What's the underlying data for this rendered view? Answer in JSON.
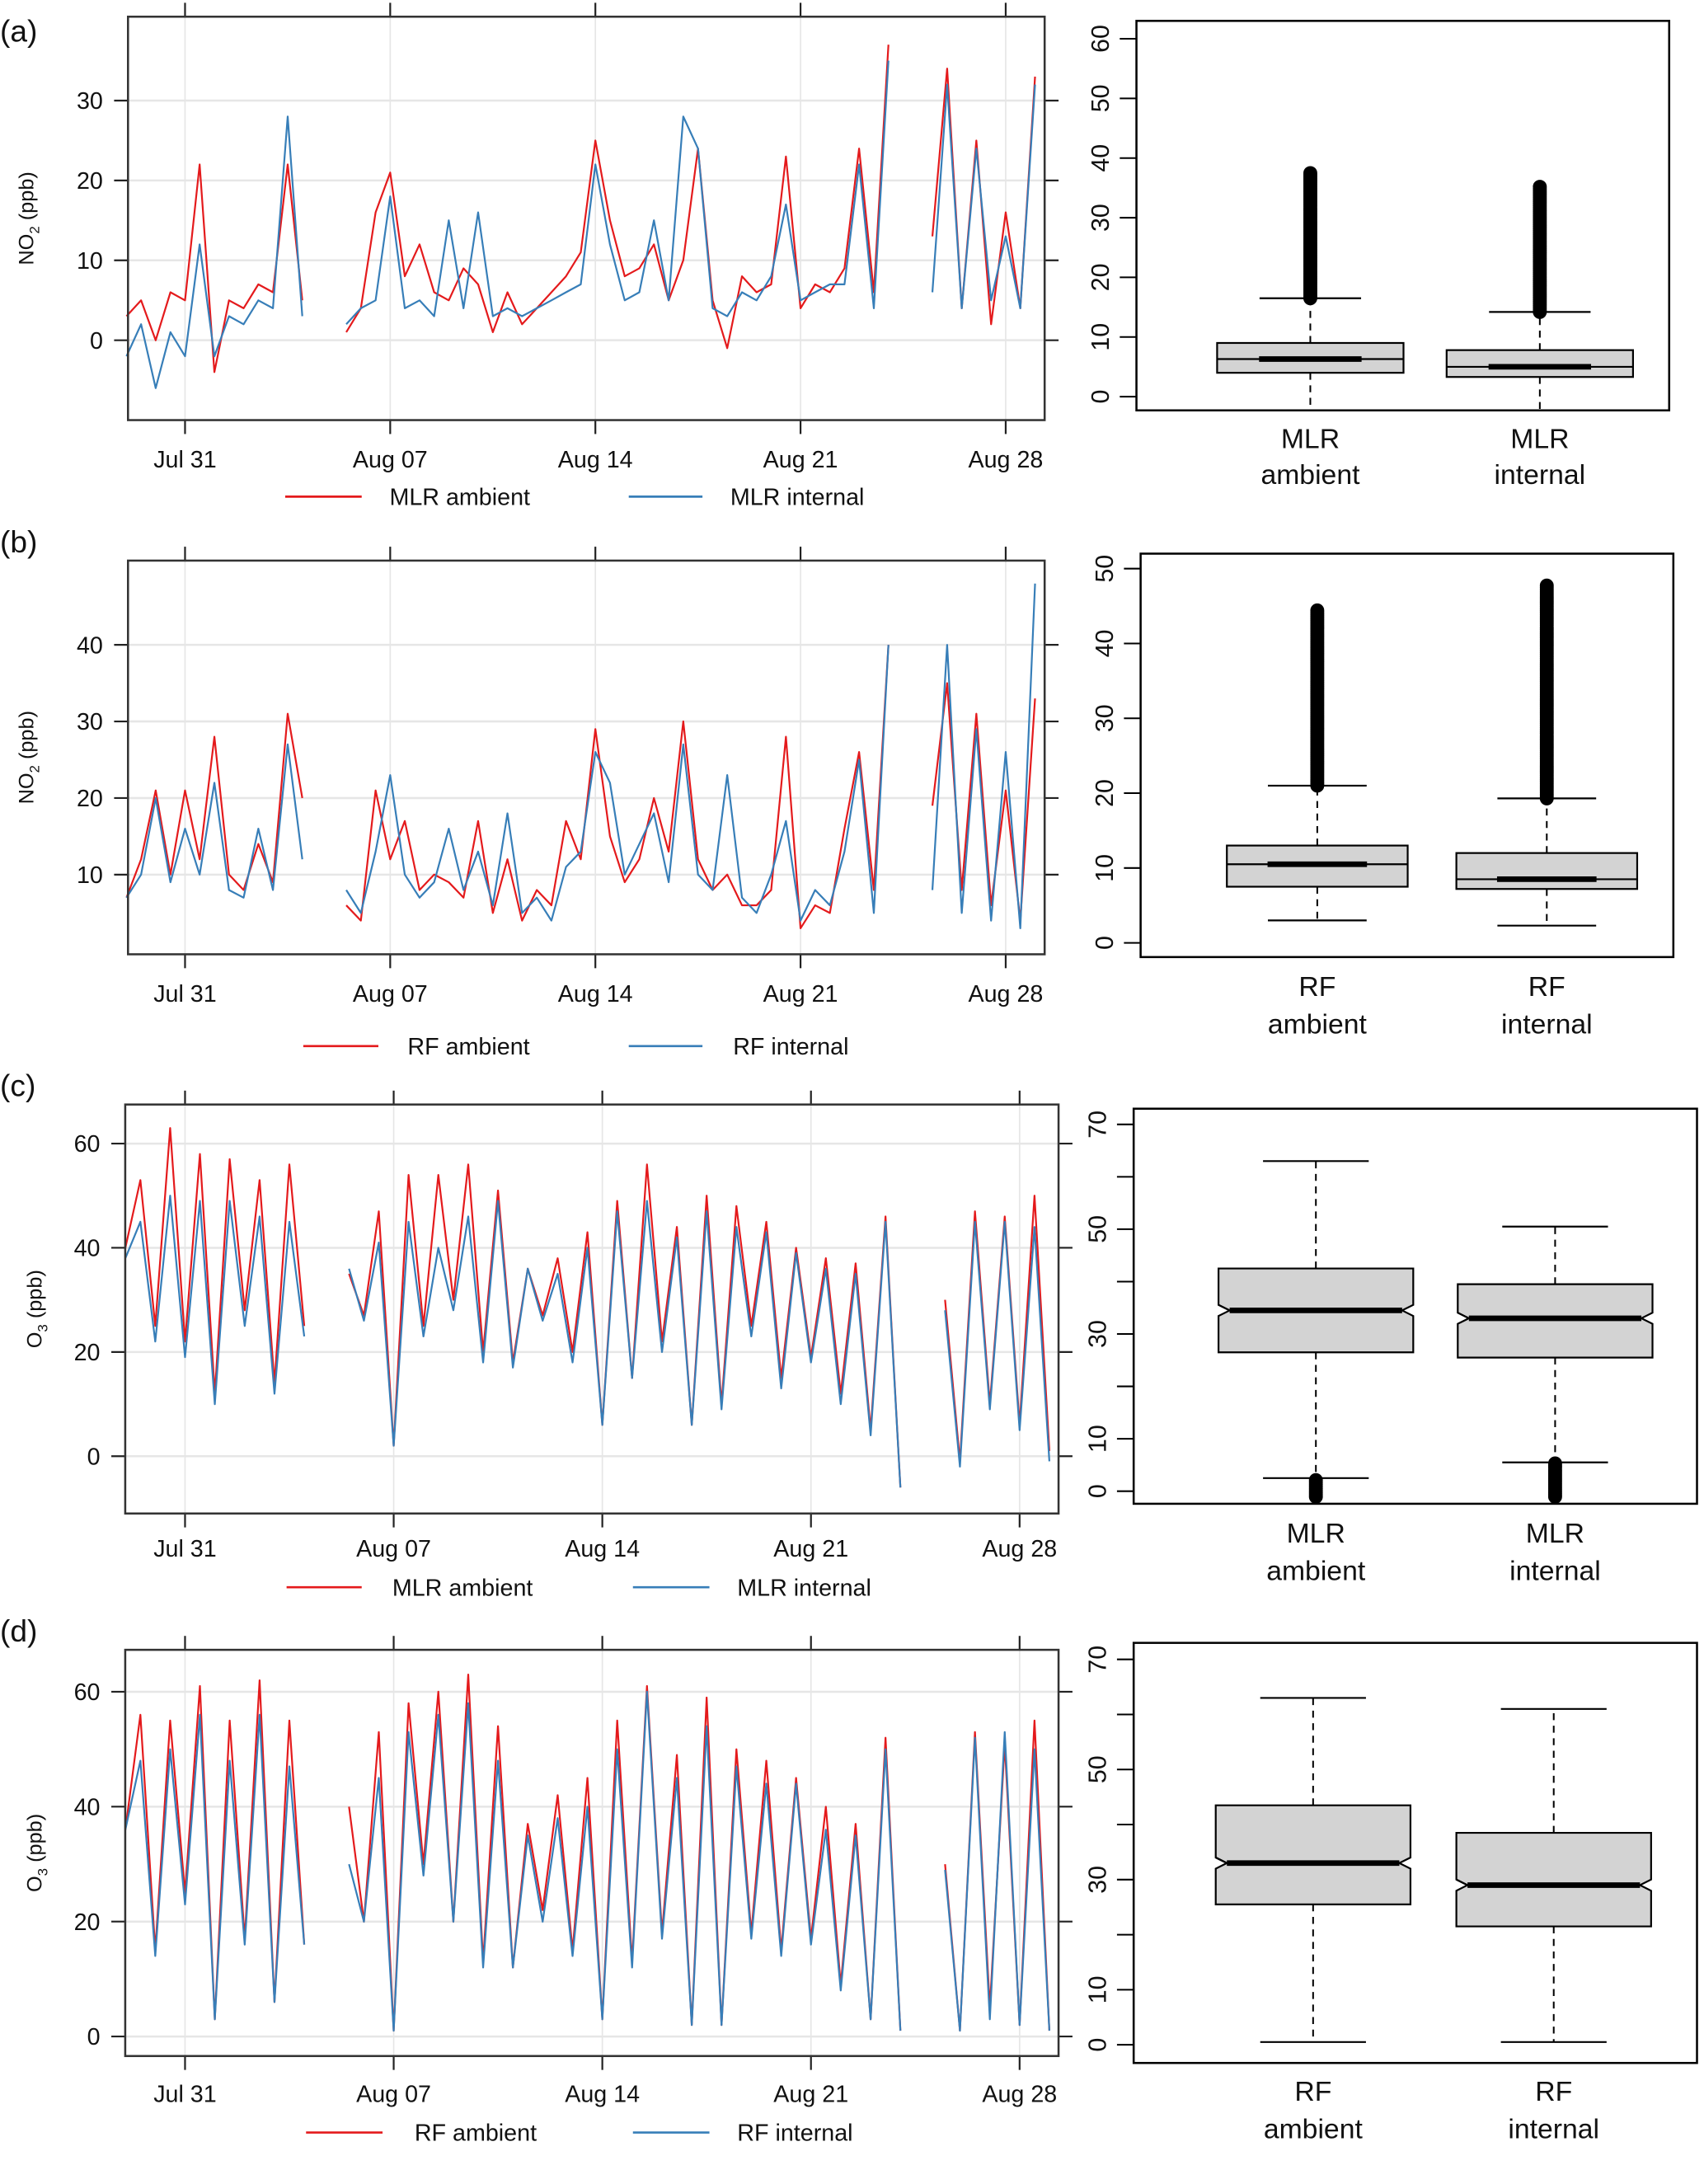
{
  "colors": {
    "ambient": "#e41a1c",
    "internal": "#377eb8",
    "box_fill": "#d3d3d3",
    "grid": "#e6e6e6"
  },
  "panel_labels": [
    "(a)",
    "(b)",
    "(c)",
    "(d)"
  ],
  "chart_data": [
    {
      "panel": "(a)",
      "type": "line",
      "ylabel": "NO2 (ppb)",
      "ylabel_main": "NO",
      "ylabel_sub": "2",
      "ylabel_unit": " (ppb)",
      "yticks": [
        0,
        10,
        20,
        30
      ],
      "ylim": [
        -10,
        40.5
      ],
      "xticks": [
        "Jul 31",
        "Aug 07",
        "Aug 14",
        "Aug 21",
        "Aug 28"
      ],
      "xlim": [
        "Jul 29 00:00",
        "Aug 29 08:00"
      ],
      "grid": true,
      "legend": "bottom",
      "x_start": "Jul 29 00:00",
      "x_step_hours": 12,
      "series": [
        {
          "name": "MLR ambient",
          "color": "#e41a1c",
          "values": [
            3,
            5,
            0,
            6,
            5,
            22,
            -4,
            5,
            4,
            7,
            6,
            22,
            5,
            null,
            null,
            1,
            4,
            16,
            21,
            8,
            12,
            6,
            5,
            9,
            7,
            1,
            6,
            2,
            4,
            6,
            8,
            11,
            25,
            15,
            8,
            9,
            12,
            5,
            10,
            24,
            5,
            -1,
            8,
            6,
            7,
            23,
            4,
            7,
            6,
            9,
            24,
            6,
            37,
            null,
            null,
            13,
            34,
            4,
            25,
            2,
            16,
            4,
            33
          ]
        },
        {
          "name": "MLR internal",
          "color": "#377eb8",
          "values": [
            -2,
            2,
            -6,
            1,
            -2,
            12,
            -2,
            3,
            2,
            5,
            4,
            28,
            3,
            null,
            null,
            2,
            4,
            5,
            18,
            4,
            5,
            3,
            15,
            4,
            16,
            3,
            4,
            3,
            4,
            5,
            6,
            7,
            22,
            12,
            5,
            6,
            15,
            5,
            28,
            24,
            4,
            3,
            6,
            5,
            8,
            17,
            5,
            6,
            7,
            7,
            22,
            4,
            35,
            null,
            null,
            6,
            32,
            4,
            24,
            5,
            13,
            4,
            32
          ]
        }
      ]
    },
    {
      "panel": "(a)",
      "type": "box",
      "categories": [
        [
          "MLR",
          "ambient"
        ],
        [
          "MLR",
          "internal"
        ]
      ],
      "yticks": [
        0,
        10,
        20,
        30,
        40,
        50,
        60
      ],
      "ytick_labels": [
        "0",
        "10",
        "20",
        "30",
        "40",
        "50",
        "60"
      ],
      "ylim": [
        -2.3,
        63
      ],
      "notched": false,
      "boxes": [
        {
          "lower_whisker": -2.3,
          "q1": 4,
          "median": 6.3,
          "q3": 9,
          "upper_whisker": 16.5,
          "outliers_range": [
            16.5,
            37.5
          ]
        },
        {
          "lower_whisker": -2.3,
          "q1": 3.3,
          "median": 5,
          "q3": 7.8,
          "upper_whisker": 14.2,
          "outliers_range": [
            14.2,
            35.5
          ]
        }
      ]
    },
    {
      "panel": "(b)",
      "type": "line",
      "ylabel": "NO2 (ppb)",
      "ylabel_main": "NO",
      "ylabel_sub": "2",
      "ylabel_unit": " (ppb)",
      "yticks": [
        10,
        20,
        30,
        40
      ],
      "ylim": [
        -0.4,
        51
      ],
      "xticks": [
        "Jul 31",
        "Aug 07",
        "Aug 14",
        "Aug 21",
        "Aug 28"
      ],
      "xlim": [
        "Jul 29 00:00",
        "Aug 29 08:00"
      ],
      "grid": true,
      "legend": "bottom",
      "x_start": "Jul 29 00:00",
      "x_step_hours": 12,
      "series": [
        {
          "name": "RF ambient",
          "color": "#e41a1c",
          "values": [
            7,
            12,
            21,
            10,
            21,
            12,
            28,
            10,
            8,
            14,
            9,
            31,
            20,
            null,
            null,
            6,
            4,
            21,
            12,
            17,
            8,
            10,
            9,
            7,
            17,
            5,
            12,
            4,
            8,
            6,
            17,
            12,
            29,
            15,
            9,
            12,
            20,
            13,
            30,
            12,
            8,
            10,
            6,
            6,
            8,
            28,
            3,
            6,
            5,
            16,
            26,
            8,
            40,
            null,
            null,
            19,
            35,
            8,
            31,
            6,
            21,
            4,
            33
          ]
        },
        {
          "name": "RF internal",
          "color": "#377eb8",
          "values": [
            7,
            10,
            20,
            9,
            16,
            10,
            22,
            8,
            7,
            16,
            8,
            27,
            12,
            null,
            null,
            8,
            5,
            13,
            23,
            10,
            7,
            9,
            16,
            8,
            13,
            6,
            18,
            5,
            7,
            4,
            11,
            13,
            26,
            22,
            10,
            14,
            18,
            9,
            27,
            10,
            8,
            23,
            7,
            5,
            10,
            17,
            4,
            8,
            6,
            13,
            25,
            5,
            40,
            null,
            null,
            8,
            40,
            5,
            29,
            4,
            26,
            3,
            48
          ]
        }
      ]
    },
    {
      "panel": "(b)",
      "type": "box",
      "categories": [
        [
          "RF",
          "ambient"
        ],
        [
          "RF",
          "internal"
        ]
      ],
      "yticks": [
        0,
        10,
        20,
        30,
        40,
        50
      ],
      "ytick_labels": [
        "0",
        "10",
        "20",
        "30",
        "40",
        "50"
      ],
      "ylim": [
        -1.9,
        52
      ],
      "notched": false,
      "boxes": [
        {
          "lower_whisker": 3,
          "q1": 7.5,
          "median": 10.5,
          "q3": 13,
          "upper_whisker": 21,
          "outliers_range": [
            21,
            44.5
          ]
        },
        {
          "lower_whisker": 2.3,
          "q1": 7.2,
          "median": 8.5,
          "q3": 12,
          "upper_whisker": 19.3,
          "outliers_range": [
            19.3,
            48
          ]
        }
      ]
    },
    {
      "panel": "(c)",
      "type": "line",
      "ylabel": "O3 (ppb)",
      "ylabel_main": "O",
      "ylabel_sub": "3",
      "ylabel_unit": " (ppb)",
      "yticks": [
        0,
        20,
        40,
        60
      ],
      "ylim": [
        -11,
        67.5
      ],
      "xticks": [
        "Jul 31",
        "Aug 07",
        "Aug 14",
        "Aug 21",
        "Aug 28"
      ],
      "xlim": [
        "Jul 29 00:00",
        "Aug 29 08:00"
      ],
      "grid": true,
      "legend": "bottom",
      "x_start": "Jul 29 00:00",
      "x_step_hours": 12,
      "series": [
        {
          "name": "MLR ambient",
          "color": "#e41a1c",
          "values": [
            40,
            53,
            25,
            63,
            22,
            58,
            12,
            57,
            28,
            53,
            14,
            56,
            25,
            null,
            null,
            35,
            27,
            47,
            2,
            54,
            25,
            54,
            30,
            56,
            20,
            51,
            18,
            36,
            27,
            38,
            20,
            43,
            6,
            49,
            15,
            56,
            22,
            44,
            6,
            50,
            10,
            48,
            25,
            45,
            15,
            40,
            19,
            38,
            12,
            37,
            5,
            46,
            -6,
            null,
            null,
            30,
            -1,
            47,
            10,
            46,
            6,
            50,
            1
          ]
        },
        {
          "name": "MLR internal",
          "color": "#377eb8",
          "values": [
            38,
            45,
            22,
            50,
            19,
            49,
            10,
            49,
            25,
            46,
            12,
            45,
            23,
            null,
            null,
            36,
            26,
            41,
            2,
            45,
            23,
            40,
            28,
            46,
            18,
            49,
            17,
            36,
            26,
            35,
            18,
            40,
            6,
            47,
            15,
            49,
            20,
            42,
            6,
            47,
            9,
            44,
            23,
            43,
            13,
            39,
            18,
            36,
            10,
            35,
            4,
            45,
            -6,
            null,
            null,
            28,
            -2,
            45,
            9,
            45,
            5,
            44,
            -1
          ]
        }
      ]
    },
    {
      "panel": "(c)",
      "type": "box",
      "categories": [
        [
          "MLR",
          "ambient"
        ],
        [
          "MLR",
          "internal"
        ]
      ],
      "yticks": [
        0,
        10,
        20,
        30,
        40,
        50,
        60,
        70
      ],
      "ytick_labels": [
        "0",
        "10",
        "",
        "30",
        "",
        "50",
        "",
        "70"
      ],
      "ylim": [
        -2.4,
        73
      ],
      "notched": true,
      "boxes": [
        {
          "lower_whisker": 2.5,
          "q1": 26.5,
          "median": 34.5,
          "q3": 42.5,
          "upper_whisker": 63,
          "outliers_range": [
            -2.4,
            2.5
          ]
        },
        {
          "lower_whisker": 5.5,
          "q1": 25.5,
          "median": 33,
          "q3": 39.5,
          "upper_whisker": 50.5,
          "outliers_range": [
            -2.4,
            5.5
          ]
        }
      ]
    },
    {
      "panel": "(d)",
      "type": "line",
      "ylabel": "O3 (ppb)",
      "ylabel_main": "O",
      "ylabel_sub": "3",
      "ylabel_unit": " (ppb)",
      "yticks": [
        0,
        20,
        40,
        60
      ],
      "ylim": [
        -3.4,
        67.3
      ],
      "xticks": [
        "Jul 31",
        "Aug 07",
        "Aug 14",
        "Aug 21",
        "Aug 28"
      ],
      "xlim": [
        "Jul 29 00:00",
        "Aug 29 08:00"
      ],
      "grid": true,
      "legend": "bottom",
      "x_start": "Jul 29 00:00",
      "x_step_hours": 12,
      "series": [
        {
          "name": "RF ambient",
          "color": "#e41a1c",
          "values": [
            36,
            56,
            15,
            55,
            25,
            61,
            3,
            55,
            17,
            62,
            6,
            55,
            16,
            null,
            null,
            40,
            20,
            53,
            1,
            58,
            30,
            60,
            20,
            63,
            13,
            54,
            12,
            37,
            22,
            42,
            15,
            45,
            3,
            55,
            13,
            61,
            18,
            49,
            2,
            59,
            2,
            50,
            18,
            48,
            15,
            45,
            17,
            40,
            9,
            37,
            3,
            52,
            1,
            null,
            null,
            30,
            1,
            53,
            5,
            51,
            2,
            55,
            1
          ]
        },
        {
          "name": "RF internal",
          "color": "#377eb8",
          "values": [
            36,
            48,
            14,
            50,
            23,
            56,
            3,
            48,
            16,
            56,
            6,
            47,
            16,
            null,
            null,
            30,
            20,
            45,
            1,
            53,
            28,
            56,
            20,
            58,
            12,
            48,
            12,
            35,
            20,
            38,
            14,
            40,
            3,
            50,
            12,
            60,
            17,
            45,
            2,
            54,
            2,
            47,
            17,
            44,
            14,
            44,
            16,
            36,
            8,
            35,
            3,
            50,
            1,
            null,
            null,
            29,
            1,
            52,
            3,
            53,
            2,
            50,
            1
          ]
        }
      ]
    },
    {
      "panel": "(d)",
      "type": "box",
      "categories": [
        [
          "RF",
          "ambient"
        ],
        [
          "RF",
          "internal"
        ]
      ],
      "yticks": [
        0,
        10,
        20,
        30,
        40,
        50,
        60,
        70
      ],
      "ytick_labels": [
        "0",
        "10",
        "",
        "30",
        "",
        "50",
        "",
        "70"
      ],
      "ylim": [
        -3.3,
        73
      ],
      "notched": true,
      "boxes": [
        {
          "lower_whisker": 0.5,
          "q1": 25.5,
          "median": 33,
          "q3": 43.5,
          "upper_whisker": 63,
          "outliers_range": null
        },
        {
          "lower_whisker": 0.5,
          "q1": 21.5,
          "median": 29,
          "q3": 38.5,
          "upper_whisker": 61,
          "outliers_range": null
        }
      ]
    }
  ]
}
